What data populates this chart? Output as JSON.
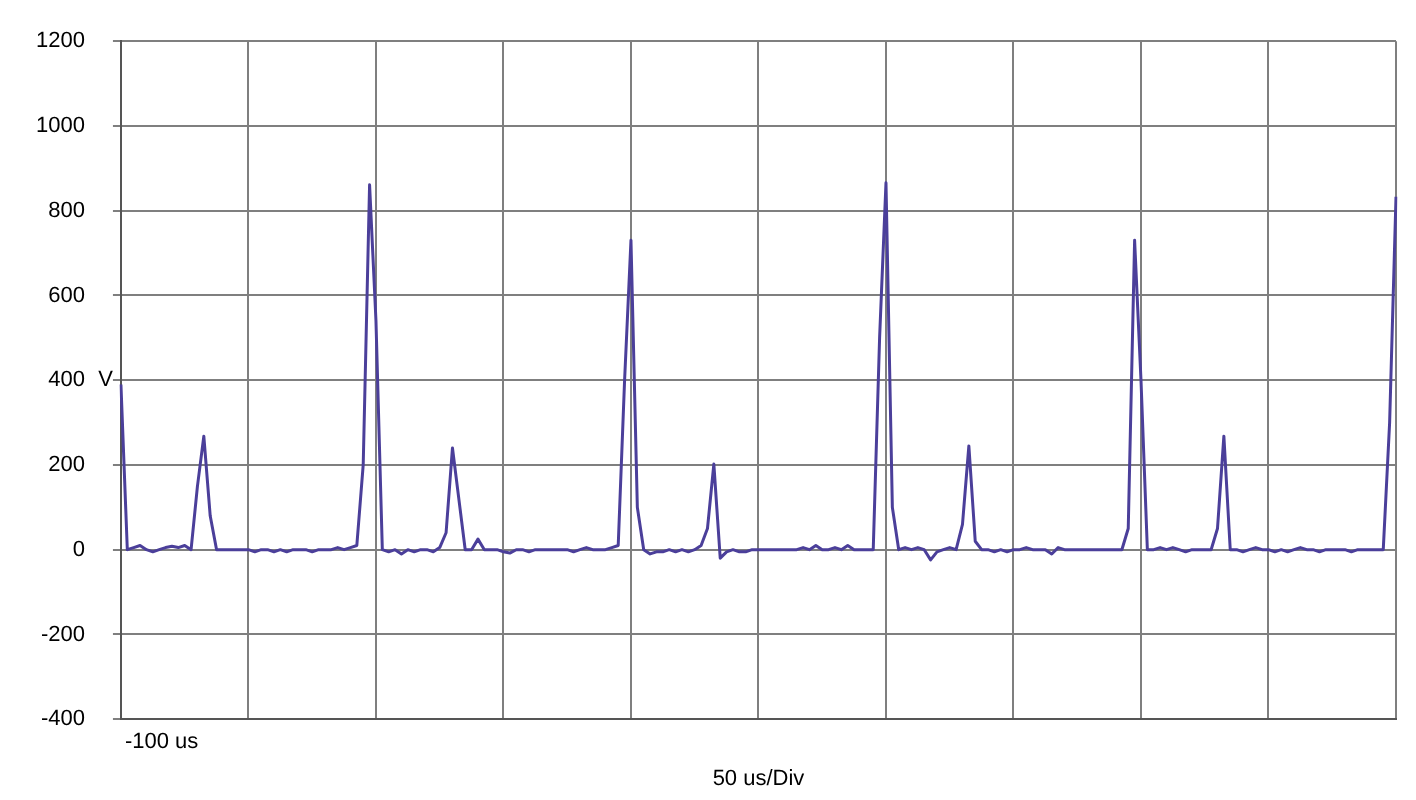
{
  "chart_data": {
    "type": "line",
    "xlabel": "50 us/Div",
    "ylabel": "V",
    "annotations": [
      "-100 us"
    ],
    "categories": [
      null,
      null,
      null,
      null,
      null,
      null,
      null,
      null,
      null,
      null,
      null,
      null,
      null,
      null,
      null,
      null,
      null,
      null,
      null,
      null,
      null,
      null,
      null,
      null,
      null,
      null,
      null,
      null,
      null,
      null,
      null,
      null,
      null,
      null,
      null,
      null,
      null,
      null,
      null,
      null,
      null,
      null,
      null,
      null,
      null,
      null,
      null,
      null,
      null,
      null,
      null,
      null,
      null,
      null,
      null,
      null,
      null,
      null,
      null,
      null,
      null,
      null,
      null,
      null,
      null,
      null,
      null,
      null,
      null,
      null,
      null,
      null,
      null,
      null,
      null,
      null,
      null,
      null,
      null,
      null,
      null,
      null,
      null,
      null,
      null,
      null,
      null,
      null,
      null,
      null,
      null,
      null,
      null,
      null,
      null,
      null,
      null,
      null,
      null,
      null,
      null,
      null,
      null,
      null,
      null,
      null,
      null,
      null,
      null,
      null,
      null,
      null,
      null,
      null,
      null,
      null,
      null,
      null,
      null,
      null,
      null,
      null,
      null,
      null,
      null,
      null,
      null,
      null,
      null,
      null,
      null,
      null,
      null,
      null,
      null,
      null,
      null,
      null,
      null,
      null,
      null,
      null,
      null,
      null,
      null,
      null,
      null,
      null,
      null,
      null,
      null,
      null,
      null,
      null,
      null,
      null,
      null,
      null,
      null,
      null,
      null,
      null,
      null,
      null,
      null,
      null,
      null,
      null,
      null,
      null,
      null,
      null,
      null,
      null,
      null,
      null,
      null,
      null,
      null,
      null,
      null,
      null,
      null,
      null,
      null,
      null,
      null,
      null,
      null,
      null,
      null,
      null,
      null,
      null,
      null,
      null,
      null,
      null,
      null,
      null,
      null
    ],
    "ylim": [
      -400,
      1200
    ],
    "yticks": [
      -400,
      -200,
      0,
      200,
      400,
      600,
      800,
      1000,
      1200
    ],
    "grid": true,
    "legend": false,
    "marker": "none",
    "line_style": "solid",
    "series": [
      {
        "color": "#4b3f9a",
        "values": [
          390,
          0,
          5,
          10,
          0,
          -5,
          0,
          5,
          8,
          5,
          10,
          0,
          150,
          268,
          80,
          0,
          0,
          0,
          0,
          0,
          0,
          -5,
          0,
          0,
          -5,
          0,
          -5,
          0,
          0,
          0,
          -5,
          0,
          0,
          0,
          5,
          0,
          5,
          10,
          200,
          861,
          541,
          0,
          -5,
          0,
          -10,
          0,
          -5,
          0,
          0,
          -5,
          5,
          40,
          240,
          120,
          0,
          0,
          25,
          0,
          0,
          0,
          -5,
          -8,
          0,
          0,
          -5,
          0,
          0,
          0,
          0,
          0,
          0,
          -5,
          0,
          5,
          0,
          0,
          0,
          5,
          10,
          400,
          730,
          100,
          0,
          -10,
          -5,
          -5,
          0,
          -5,
          0,
          -5,
          0,
          10,
          50,
          202,
          -20,
          -5,
          0,
          -5,
          -5,
          0,
          0,
          0,
          0,
          0,
          0,
          0,
          0,
          5,
          0,
          10,
          0,
          0,
          5,
          0,
          10,
          0,
          0,
          0,
          0,
          500,
          866,
          100,
          0,
          5,
          0,
          5,
          0,
          -24,
          -5,
          0,
          5,
          0,
          60,
          245,
          20,
          0,
          0,
          -5,
          0,
          -5,
          0,
          0,
          5,
          0,
          0,
          0,
          -10,
          5,
          0,
          0,
          0,
          0,
          0,
          0,
          0,
          0,
          0,
          0,
          50,
          730,
          400,
          0,
          0,
          5,
          0,
          5,
          0,
          -5,
          0,
          0,
          0,
          0,
          50,
          268,
          0,
          0,
          -5,
          0,
          5,
          0,
          0,
          -5,
          0,
          -5,
          0,
          5,
          0,
          0,
          -5,
          0,
          0,
          0,
          0,
          -5,
          0,
          0,
          0,
          0,
          0,
          300,
          833
        ]
      }
    ]
  }
}
